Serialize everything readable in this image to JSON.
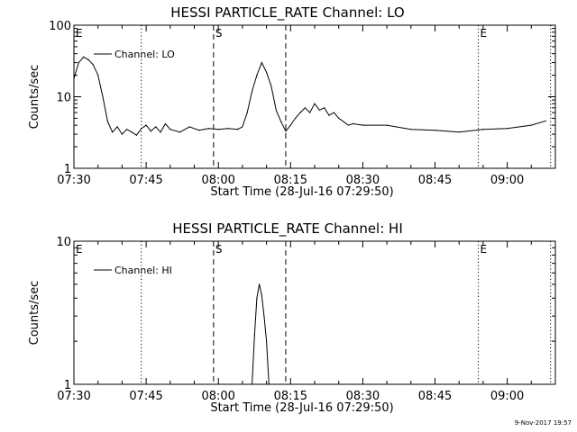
{
  "footer_timestamp": "9-Nov-2017 19:57",
  "chart_data": [
    {
      "type": "line",
      "title": "HESSI PARTICLE_RATE Channel: LO",
      "xlabel": "Start Time (28-Jul-16 07:29:50)",
      "ylabel": "Counts/sec",
      "yscale": "log",
      "xlim": [
        "07:30",
        "09:10"
      ],
      "ylim": [
        1,
        100
      ],
      "x_ticks": [
        "07:30",
        "07:45",
        "08:00",
        "08:15",
        "08:30",
        "08:45",
        "09:00"
      ],
      "y_ticks": [
        "1",
        "10",
        "100"
      ],
      "legend": "top-left",
      "markers": [
        {
          "label": "E",
          "time": "07:30",
          "style": "none"
        },
        {
          "label": "",
          "time": "07:44",
          "style": "dotted"
        },
        {
          "label": "S",
          "time": "07:59",
          "style": "dashed"
        },
        {
          "label": "",
          "time": "08:14",
          "style": "dashed"
        },
        {
          "label": "E",
          "time": "08:54",
          "style": "dotted"
        },
        {
          "label": "",
          "time": "09:09",
          "style": "dotted"
        }
      ],
      "series": [
        {
          "name": "Channel: LO",
          "x": [
            "07:30",
            "07:31",
            "07:32",
            "07:33",
            "07:34",
            "07:35",
            "07:36",
            "07:37",
            "07:38",
            "07:39",
            "07:40",
            "07:41",
            "07:42",
            "07:43",
            "07:44",
            "07:45",
            "07:46",
            "07:47",
            "07:48",
            "07:49",
            "07:50",
            "07:52",
            "07:54",
            "07:56",
            "07:58",
            "08:00",
            "08:02",
            "08:04",
            "08:05",
            "08:06",
            "08:07",
            "08:08",
            "08:09",
            "08:10",
            "08:11",
            "08:12",
            "08:13",
            "08:14",
            "08:15",
            "08:16",
            "08:17",
            "08:18",
            "08:19",
            "08:20",
            "08:21",
            "08:22",
            "08:23",
            "08:24",
            "08:25",
            "08:26",
            "08:27",
            "08:28",
            "08:30",
            "08:35",
            "08:40",
            "08:45",
            "08:50",
            "08:55",
            "09:00",
            "09:05",
            "09:08"
          ],
          "values": [
            18,
            30,
            36,
            33,
            28,
            20,
            10,
            4.5,
            3.2,
            3.8,
            3,
            3.5,
            3.2,
            2.9,
            3.6,
            4,
            3.3,
            3.8,
            3.2,
            4.2,
            3.5,
            3.2,
            3.8,
            3.4,
            3.6,
            3.5,
            3.6,
            3.5,
            3.8,
            6,
            12,
            20,
            30,
            22,
            14,
            6.5,
            4.5,
            3.3,
            4,
            5,
            6,
            7,
            6,
            8,
            6.5,
            7,
            5.5,
            6,
            5,
            4.5,
            4,
            4.2,
            4,
            4,
            3.5,
            3.4,
            3.2,
            3.5,
            3.6,
            4,
            4.6
          ]
        }
      ]
    },
    {
      "type": "line",
      "title": "HESSI PARTICLE_RATE Channel: HI",
      "xlabel": "Start Time (28-Jul-16 07:29:50)",
      "ylabel": "Counts/sec",
      "yscale": "log",
      "xlim": [
        "07:30",
        "09:10"
      ],
      "ylim": [
        1,
        10
      ],
      "x_ticks": [
        "07:30",
        "07:45",
        "08:00",
        "08:15",
        "08:30",
        "08:45",
        "09:00"
      ],
      "y_ticks": [
        "1",
        "10"
      ],
      "legend": "top-left",
      "markers": [
        {
          "label": "E",
          "time": "07:30",
          "style": "none"
        },
        {
          "label": "",
          "time": "07:44",
          "style": "dotted"
        },
        {
          "label": "S",
          "time": "07:59",
          "style": "dashed"
        },
        {
          "label": "",
          "time": "08:14",
          "style": "dashed"
        },
        {
          "label": "E",
          "time": "08:54",
          "style": "dotted"
        },
        {
          "label": "",
          "time": "09:09",
          "style": "dotted"
        }
      ],
      "series": [
        {
          "name": "Channel: HI",
          "x": [
            "08:07",
            "08:07.5",
            "08:08",
            "08:08.5",
            "08:09",
            "08:09.5",
            "08:10",
            "08:10.5"
          ],
          "values": [
            1,
            2.2,
            4,
            5,
            4.2,
            3,
            2,
            1
          ]
        }
      ]
    }
  ]
}
